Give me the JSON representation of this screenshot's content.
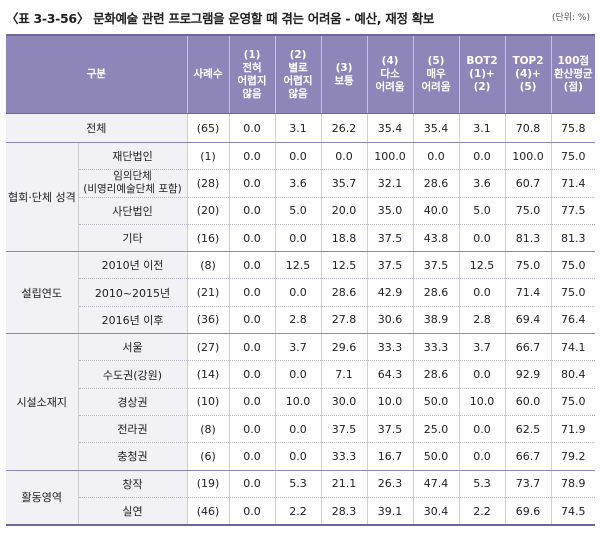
{
  "title": "〈표 3-3-56〉 문화예술 관련 프로그램을 운영할 때 겪는 어려움 - 예산, 재정 확보",
  "unit": "(단위: %)",
  "headers": {
    "category": "구분",
    "cases": "사례수",
    "c1": [
      "(1)",
      "전혀",
      "어렵지",
      "않음"
    ],
    "c2": [
      "(2)",
      "별로",
      "어렵지",
      "않음"
    ],
    "c3": [
      "(3)",
      "보통"
    ],
    "c4": [
      "(4)",
      "다소",
      "어려움"
    ],
    "c5": [
      "(5)",
      "매우",
      "어려움"
    ],
    "bot2": [
      "BOT2",
      "(1)+(2)"
    ],
    "top2": [
      "TOP2",
      "(4)+(5)"
    ],
    "score": [
      "100점",
      "환산평균",
      "(점)"
    ]
  },
  "total": {
    "label": "전체",
    "cases": "(65)",
    "values": [
      "0.0",
      "3.1",
      "26.2",
      "35.4",
      "35.4",
      "3.1",
      "70.8",
      "75.8"
    ]
  },
  "groups": [
    {
      "name": "협회·단체 성격",
      "rows": [
        {
          "label": "재단법인",
          "cases": "(1)",
          "values": [
            "0.0",
            "0.0",
            "0.0",
            "100.0",
            "0.0",
            "0.0",
            "100.0",
            "75.0"
          ]
        },
        {
          "label": "임의단체",
          "label2": "(비영리예술단체 포함)",
          "cases": "(28)",
          "values": [
            "0.0",
            "3.6",
            "35.7",
            "32.1",
            "28.6",
            "3.6",
            "60.7",
            "71.4"
          ]
        },
        {
          "label": "사단법인",
          "cases": "(20)",
          "values": [
            "0.0",
            "5.0",
            "20.0",
            "35.0",
            "40.0",
            "5.0",
            "75.0",
            "77.5"
          ]
        },
        {
          "label": "기타",
          "cases": "(16)",
          "values": [
            "0.0",
            "0.0",
            "18.8",
            "37.5",
            "43.8",
            "0.0",
            "81.3",
            "81.3"
          ]
        }
      ]
    },
    {
      "name": "설립연도",
      "rows": [
        {
          "label": "2010년 이전",
          "cases": "(8)",
          "values": [
            "0.0",
            "12.5",
            "12.5",
            "37.5",
            "37.5",
            "12.5",
            "75.0",
            "75.0"
          ]
        },
        {
          "label": "2010~2015년",
          "cases": "(21)",
          "values": [
            "0.0",
            "0.0",
            "28.6",
            "42.9",
            "28.6",
            "0.0",
            "71.4",
            "75.0"
          ]
        },
        {
          "label": "2016년 이후",
          "cases": "(36)",
          "values": [
            "0.0",
            "2.8",
            "27.8",
            "30.6",
            "38.9",
            "2.8",
            "69.4",
            "76.4"
          ]
        }
      ]
    },
    {
      "name": "시설소재지",
      "rows": [
        {
          "label": "서울",
          "cases": "(27)",
          "values": [
            "0.0",
            "3.7",
            "29.6",
            "33.3",
            "33.3",
            "3.7",
            "66.7",
            "74.1"
          ]
        },
        {
          "label": "수도권(강원)",
          "cases": "(14)",
          "values": [
            "0.0",
            "0.0",
            "7.1",
            "64.3",
            "28.6",
            "0.0",
            "92.9",
            "80.4"
          ]
        },
        {
          "label": "경상권",
          "cases": "(10)",
          "values": [
            "0.0",
            "10.0",
            "30.0",
            "10.0",
            "50.0",
            "10.0",
            "60.0",
            "75.0"
          ]
        },
        {
          "label": "전라권",
          "cases": "(8)",
          "values": [
            "0.0",
            "0.0",
            "37.5",
            "37.5",
            "25.0",
            "0.0",
            "62.5",
            "71.9"
          ]
        },
        {
          "label": "충청권",
          "cases": "(6)",
          "values": [
            "0.0",
            "0.0",
            "33.3",
            "16.7",
            "50.0",
            "0.0",
            "66.7",
            "79.2"
          ]
        }
      ]
    },
    {
      "name": "활동영역",
      "rows": [
        {
          "label": "창작",
          "cases": "(19)",
          "values": [
            "0.0",
            "5.3",
            "21.1",
            "26.3",
            "47.4",
            "5.3",
            "73.7",
            "78.9"
          ]
        },
        {
          "label": "실연",
          "cases": "(46)",
          "values": [
            "0.0",
            "2.2",
            "28.3",
            "39.1",
            "30.4",
            "2.2",
            "69.6",
            "74.5"
          ]
        }
      ]
    }
  ]
}
